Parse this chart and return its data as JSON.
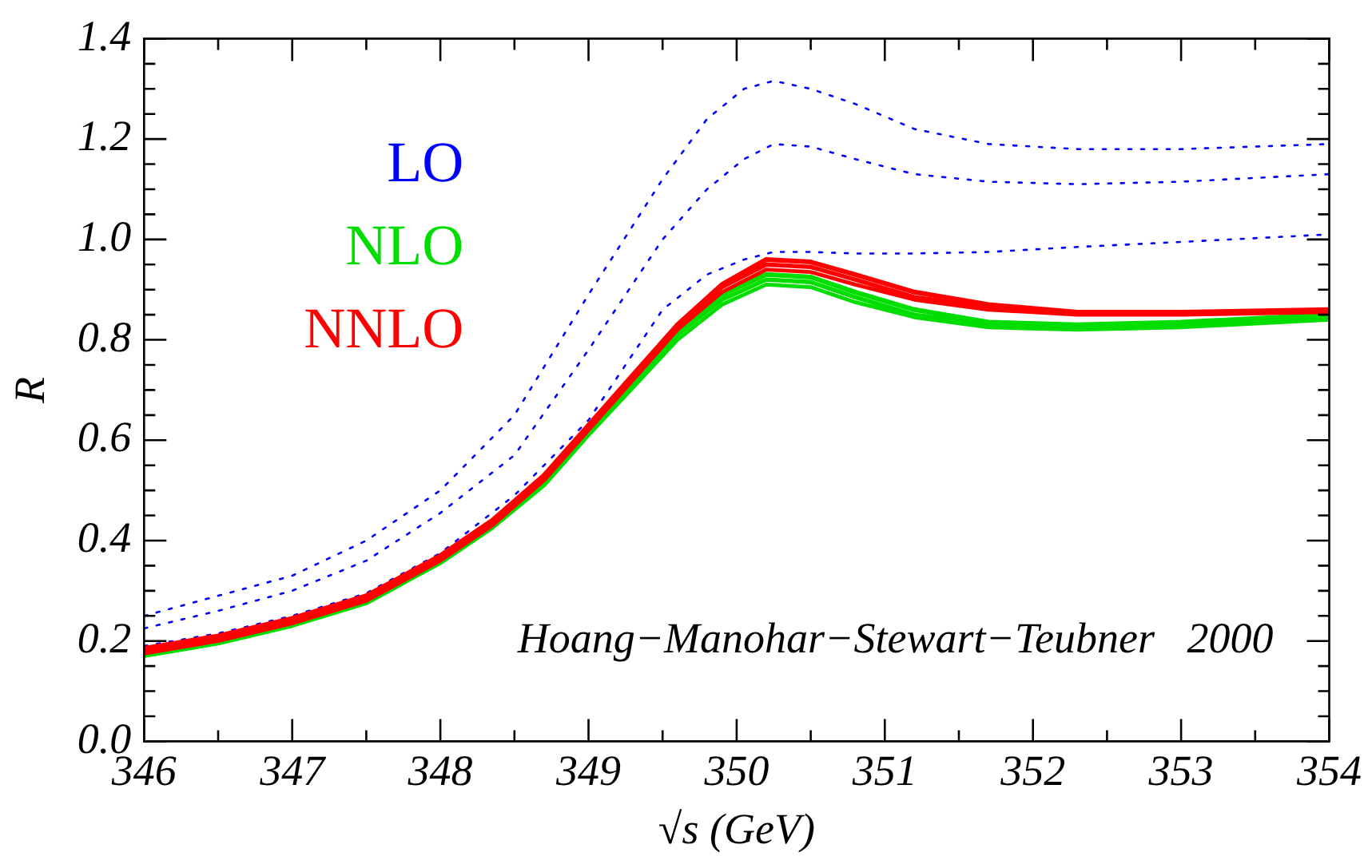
{
  "chart_data": {
    "type": "line",
    "xlabel": "√s (GeV)",
    "ylabel": "R",
    "xlim": [
      346,
      354
    ],
    "ylim": [
      0,
      1.4
    ],
    "xticks": [
      346,
      347,
      348,
      349,
      350,
      351,
      352,
      353,
      354
    ],
    "yticks": [
      {
        "value": 0,
        "label": "0.0"
      },
      {
        "value": 0.2,
        "label": "0.2"
      },
      {
        "value": 0.4,
        "label": "0.4"
      },
      {
        "value": 0.6,
        "label": "0.6"
      },
      {
        "value": 0.8,
        "label": "0.8"
      },
      {
        "value": 1,
        "label": "1.0"
      },
      {
        "value": 1.2,
        "label": "1.2"
      },
      {
        "value": 1.4,
        "label": "1.4"
      }
    ],
    "grid": false,
    "legend": "top left",
    "marker": "none",
    "annotations": [
      "Hoang−Manohar−Stewart−Teubner   2000"
    ],
    "x": [
      346,
      346.5,
      347,
      347.5,
      348,
      348.35,
      348.7,
      349,
      349.3,
      349.6,
      349.9,
      350.2,
      350.5,
      350.8,
      351.2,
      351.7,
      352.3,
      353,
      354
    ],
    "series": [
      {
        "name": "LO",
        "color": "#0000ff",
        "line_style": "dotted",
        "x": [
          346,
          346.5,
          347,
          347.5,
          348,
          348.5,
          349,
          349.5,
          349.8,
          350.05,
          350.25,
          350.5,
          350.8,
          351.2,
          351.7,
          352.3,
          353,
          354
        ],
        "values": [
          0.25,
          0.29,
          0.33,
          0.4,
          0.5,
          0.65,
          0.89,
          1.12,
          1.24,
          1.3,
          1.316,
          1.3,
          1.27,
          1.22,
          1.19,
          1.18,
          1.18,
          1.19
        ]
      },
      {
        "color": "#0000ff",
        "line_style": "dotted",
        "x": [
          346,
          346.5,
          347,
          347.5,
          348,
          348.5,
          349,
          349.5,
          349.8,
          350.05,
          350.25,
          350.5,
          350.8,
          351.2,
          351.7,
          352.3,
          353,
          354
        ],
        "values": [
          0.225,
          0.26,
          0.3,
          0.36,
          0.455,
          0.57,
          0.78,
          1.0,
          1.1,
          1.16,
          1.19,
          1.185,
          1.16,
          1.13,
          1.115,
          1.11,
          1.115,
          1.13
        ]
      },
      {
        "color": "#0000ff",
        "line_style": "dotted",
        "x": [
          346,
          346.5,
          347,
          347.5,
          348,
          348.5,
          349,
          349.5,
          349.8,
          350.05,
          350.25,
          350.5,
          350.8,
          351.2,
          351.7,
          352.3,
          353,
          354
        ],
        "values": [
          0.19,
          0.215,
          0.25,
          0.295,
          0.375,
          0.49,
          0.64,
          0.86,
          0.93,
          0.96,
          0.975,
          0.975,
          0.972,
          0.972,
          0.975,
          0.985,
          0.995,
          1.01
        ]
      },
      {
        "name": "NLO",
        "color": "#00dd00",
        "line_style": "solid",
        "values": [
          0.175,
          0.2,
          0.235,
          0.28,
          0.36,
          0.43,
          0.52,
          0.62,
          0.72,
          0.815,
          0.89,
          0.93,
          0.925,
          0.895,
          0.86,
          0.835,
          0.83,
          0.835,
          0.85
        ]
      },
      {
        "color": "#00dd00",
        "line_style": "solid",
        "values": [
          0.172,
          0.197,
          0.232,
          0.277,
          0.357,
          0.427,
          0.515,
          0.615,
          0.715,
          0.81,
          0.88,
          0.92,
          0.915,
          0.885,
          0.85,
          0.83,
          0.825,
          0.83,
          0.845
        ]
      },
      {
        "color": "#00dd00",
        "line_style": "solid",
        "values": [
          0.17,
          0.195,
          0.23,
          0.275,
          0.355,
          0.425,
          0.51,
          0.61,
          0.705,
          0.8,
          0.87,
          0.91,
          0.905,
          0.875,
          0.845,
          0.825,
          0.82,
          0.825,
          0.84
        ]
      },
      {
        "name": "NNLO",
        "color": "#ff0000",
        "line_style": "solid",
        "values": [
          0.185,
          0.21,
          0.245,
          0.29,
          0.37,
          0.44,
          0.53,
          0.63,
          0.73,
          0.83,
          0.91,
          0.96,
          0.955,
          0.93,
          0.895,
          0.87,
          0.855,
          0.855,
          0.86
        ]
      },
      {
        "color": "#ff0000",
        "line_style": "solid",
        "values": [
          0.18,
          0.205,
          0.24,
          0.285,
          0.365,
          0.435,
          0.525,
          0.625,
          0.725,
          0.825,
          0.905,
          0.95,
          0.945,
          0.92,
          0.885,
          0.865,
          0.852,
          0.852,
          0.857
        ]
      },
      {
        "color": "#ff0000",
        "line_style": "solid",
        "values": [
          0.175,
          0.2,
          0.235,
          0.28,
          0.36,
          0.43,
          0.52,
          0.62,
          0.72,
          0.82,
          0.895,
          0.94,
          0.935,
          0.91,
          0.88,
          0.86,
          0.85,
          0.85,
          0.855
        ]
      }
    ]
  }
}
